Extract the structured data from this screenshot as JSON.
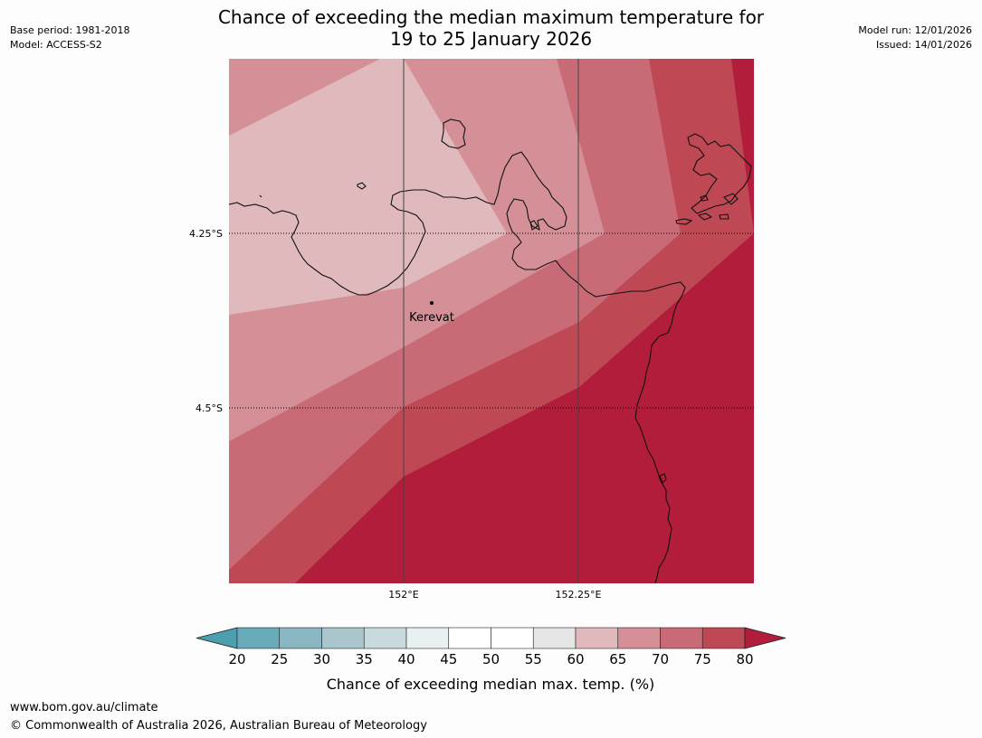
{
  "header": {
    "title_line1": "Chance of exceeding the median maximum temperature for",
    "title_line2": "19 to 25 January 2026",
    "base_period": "Base period: 1981-2018",
    "model": "Model: ACCESS-S2",
    "model_run": "Model run: 12/01/2026",
    "issued": "Issued: 14/01/2026"
  },
  "map": {
    "lat_labels": [
      "4.25°S",
      "4.5°S"
    ],
    "lon_labels": [
      "152°E",
      "152.25°E"
    ],
    "place_name": "Kerevat"
  },
  "legend": {
    "ticks": [
      "20",
      "25",
      "30",
      "35",
      "40",
      "45",
      "50",
      "55",
      "60",
      "65",
      "70",
      "75",
      "80"
    ],
    "colors": [
      "#6aabba",
      "#8ab6c3",
      "#a8c6cc",
      "#c8dadd",
      "#e8f0f2",
      "#ffffff",
      "#ffffff",
      "#e6e6e6",
      "#e0b9bd",
      "#d48f97",
      "#c96b76",
      "#bf4855",
      "#b11d3a"
    ],
    "low_color": "#4b9fae",
    "label": "Chance of exceeding median max. temp. (%)"
  },
  "footer": {
    "url": "www.bom.gov.au/climate",
    "copyright": "© Commonwealth of Australia 2026, Australian Bureau of Meteorology"
  }
}
